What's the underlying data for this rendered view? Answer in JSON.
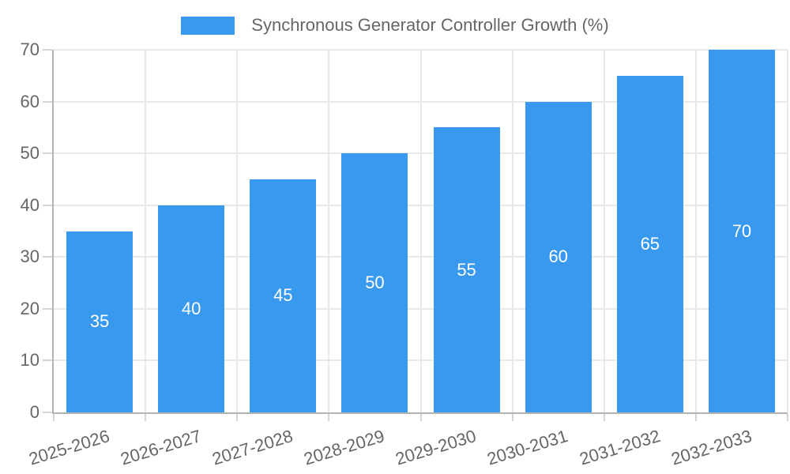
{
  "chart_data": {
    "type": "bar",
    "title": "Synchronous Generator Controller Growth (%)",
    "legend": {
      "position": "top",
      "label": "Synchronous Generator Controller Growth (%)"
    },
    "categories": [
      "2025-2026",
      "2026-2027",
      "2027-2028",
      "2028-2029",
      "2029-2030",
      "2030-2031",
      "2031-2032",
      "2032-2033"
    ],
    "values": [
      35,
      40,
      45,
      50,
      55,
      60,
      65,
      70
    ],
    "yticks": [
      0,
      10,
      20,
      30,
      40,
      50,
      60,
      70
    ],
    "ylim": [
      0,
      70
    ],
    "xlabel": "",
    "ylabel": "",
    "grid": true,
    "x_label_rotation_deg": -17,
    "colors": {
      "bar": "#3999EE",
      "bar_value_label": "#FFFFFF",
      "axis_text": "#666666",
      "grid_line": "#E9E9E9",
      "axis_line": "#B3B3B3",
      "tick_mark": "#D4D4D4",
      "background": "#FFFFFF"
    }
  }
}
